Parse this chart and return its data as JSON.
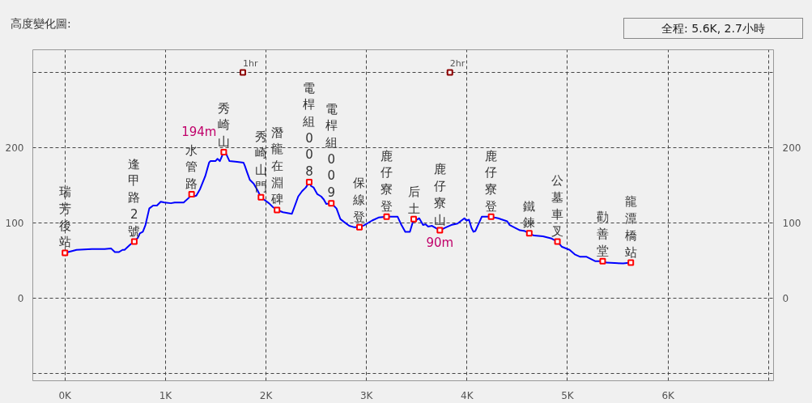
{
  "chart_data": {
    "type": "line",
    "title": "高度變化圖:",
    "subtitle": "全程: 5.6K, 2.7小時",
    "xlim": [
      -0.32,
      7.05
    ],
    "xticks": [
      {
        "value": 0,
        "label": "0K"
      },
      {
        "value": 1,
        "label": "1K"
      },
      {
        "value": 2,
        "label": "2K"
      },
      {
        "value": 3,
        "label": "3K"
      },
      {
        "value": 4,
        "label": "4K"
      },
      {
        "value": 5,
        "label": "5K"
      },
      {
        "value": 6,
        "label": "6K"
      },
      {
        "value": 7,
        "label": null
      }
    ],
    "ylim": [
      -110,
      330
    ],
    "yticks": [
      {
        "value": -100,
        "label": null
      },
      0,
      100,
      200,
      {
        "value": 300,
        "label": null
      }
    ],
    "y2lim": [
      -110,
      330
    ],
    "y2ticks": [
      0,
      100,
      200
    ],
    "grid": true,
    "series": [
      {
        "color": "#0000ff",
        "x": [
          0.0,
          0.116,
          0.268,
          0.395,
          0.458,
          0.497,
          0.535,
          0.573,
          0.593,
          0.649,
          0.69,
          0.725,
          0.745,
          0.775,
          0.801,
          0.839,
          0.877,
          0.915,
          0.953,
          0.991,
          1.054,
          1.092,
          1.181,
          1.231,
          1.26,
          1.282,
          1.307,
          1.345,
          1.396,
          1.434,
          1.447,
          1.497,
          1.518,
          1.541,
          1.58,
          1.599,
          1.637,
          1.713,
          1.776,
          1.789,
          1.815,
          1.84,
          1.878,
          1.916,
          1.95,
          1.979,
          2.03,
          2.068,
          2.11,
          2.169,
          2.258,
          2.283,
          2.321,
          2.359,
          2.397,
          2.43,
          2.448,
          2.473,
          2.511,
          2.549,
          2.575,
          2.6,
          2.65,
          2.702,
          2.74,
          2.778,
          2.828,
          2.879,
          2.93,
          2.98,
          3.056,
          3.12,
          3.2,
          3.31,
          3.348,
          3.386,
          3.432,
          3.47,
          3.5,
          3.525,
          3.563,
          3.589,
          3.614,
          3.652,
          3.73,
          3.792,
          3.843,
          3.906,
          3.974,
          3.995,
          4.02,
          4.045,
          4.065,
          4.083,
          4.147,
          4.24,
          4.311,
          4.4,
          4.425,
          4.527,
          4.577,
          4.62,
          4.666,
          4.755,
          4.843,
          4.9,
          4.945,
          5.021,
          5.072,
          5.122,
          5.186,
          5.274,
          5.35,
          5.389,
          5.554,
          5.63
        ],
        "values": [
          60,
          64,
          65,
          65,
          66,
          61,
          61,
          64,
          64,
          71,
          75,
          80,
          86,
          88,
          97,
          119,
          123,
          123,
          128,
          127,
          126,
          127,
          127,
          133,
          138,
          135,
          136,
          145,
          162,
          180,
          182,
          182,
          185,
          182,
          194,
          193,
          182,
          181,
          180,
          176,
          166,
          157,
          152,
          143,
          134,
          131,
          126,
          121,
          117,
          114,
          112,
          121,
          135,
          142,
          147,
          154,
          149,
          147,
          138,
          135,
          131,
          125,
          126,
          119,
          105,
          101,
          96,
          94,
          94,
          97,
          103,
          107,
          108,
          108,
          97,
          88,
          88,
          105,
          104,
          106,
          97,
          98,
          95,
          96,
          90,
          94,
          97,
          99,
          106,
          103,
          104,
          93,
          88,
          89,
          108,
          108,
          106,
          102,
          97,
          90,
          89,
          86,
          83,
          82,
          79,
          75,
          68,
          64,
          58,
          55,
          55,
          49,
          49,
          47,
          46,
          47
        ]
      },
      {
        "type": "scatter",
        "marker": "square",
        "color": "#ff0000",
        "x": [
          0.0,
          0.69,
          1.26,
          1.58,
          1.95,
          2.11,
          2.43,
          2.65,
          2.93,
          3.2,
          3.47,
          3.73,
          4.24,
          4.62,
          4.9,
          5.35,
          5.63
        ],
        "values": [
          60,
          75,
          138,
          194,
          134,
          117,
          154,
          126,
          94,
          108,
          105,
          90,
          108,
          86,
          75,
          49,
          47
        ],
        "value_labels": [
          null,
          null,
          null,
          "194m",
          null,
          null,
          null,
          null,
          null,
          null,
          null,
          "90m",
          null,
          null,
          null,
          null,
          null
        ]
      },
      {
        "type": "scatter",
        "marker": "square",
        "color": "#8b0000",
        "x": [
          1.77,
          3.83
        ],
        "values": [
          300,
          300
        ]
      }
    ],
    "annotations": [
      {
        "text": "瑞芳後站",
        "x": 0.0,
        "y": 60
      },
      {
        "text": "逢甲路2號",
        "x": 0.69,
        "y": 75
      },
      {
        "text": "水管路",
        "x": 1.26,
        "y": 138
      },
      {
        "text": "秀崎山",
        "x": 1.58,
        "y": 194
      },
      {
        "text": "秀崎山門",
        "x": 1.95,
        "y": 134
      },
      {
        "text": "潛龍在淵碑",
        "x": 2.11,
        "y": 117
      },
      {
        "text": "電桿組008",
        "x": 2.43,
        "y": 154
      },
      {
        "text": "電桿組009",
        "x": 2.65,
        "y": 126
      },
      {
        "text": "保線登",
        "x": 2.93,
        "y": 94
      },
      {
        "text": "鹿仔寮登",
        "x": 3.2,
        "y": 108
      },
      {
        "text": "后土",
        "x": 3.47,
        "y": 105
      },
      {
        "text": "鹿仔寮山",
        "x": 3.73,
        "y": 90
      },
      {
        "text": "鹿仔寮登",
        "x": 4.24,
        "y": 108
      },
      {
        "text": "鐵鍊",
        "x": 4.62,
        "y": 86
      },
      {
        "text": "公墓車叉",
        "x": 4.9,
        "y": 75
      },
      {
        "text": "勸善堂",
        "x": 5.35,
        "y": 49
      },
      {
        "text": "龍潭橋站",
        "x": 5.63,
        "y": 47
      },
      {
        "text": "1hr",
        "x": 1.77,
        "y": 300
      },
      {
        "text": "2hr",
        "x": 3.83,
        "y": 300
      }
    ]
  }
}
